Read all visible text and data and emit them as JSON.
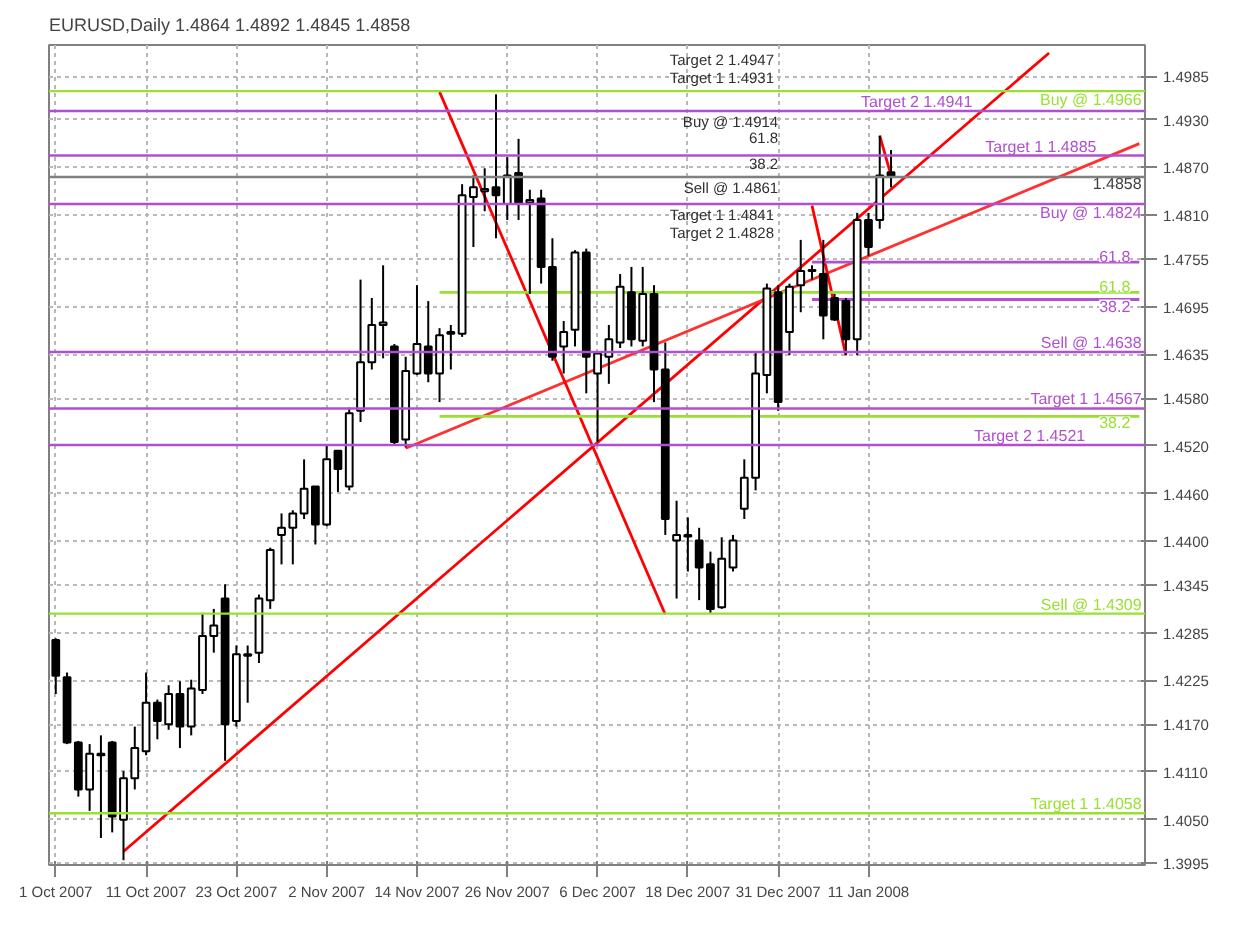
{
  "chart_data": {
    "type": "candlestick",
    "title": "EURUSD,Daily  1.4864 1.4892 1.4845 1.4858",
    "categories": [
      "1 Oct 2007",
      null,
      null,
      null,
      null,
      null,
      null,
      null,
      "11 Oct 2007",
      null,
      null,
      null,
      null,
      null,
      null,
      null,
      "23 Oct 2007",
      null,
      null,
      null,
      null,
      null,
      null,
      null,
      "2 Nov 2007",
      null,
      null,
      null,
      null,
      null,
      null,
      null,
      "14 Nov 2007",
      null,
      null,
      null,
      null,
      null,
      null,
      null,
      "26 Nov 2007",
      null,
      null,
      null,
      null,
      null,
      null,
      null,
      "6 Dec 2007",
      null,
      null,
      null,
      null,
      null,
      null,
      null,
      "18 Dec 2007",
      null,
      null,
      null,
      null,
      null,
      null,
      null,
      "31 Dec 2007",
      null,
      null,
      null,
      null,
      null,
      null,
      null,
      "11 Jan 2008",
      null,
      null,
      null,
      null,
      null,
      null,
      null,
      null,
      null,
      null,
      null,
      null,
      null,
      null,
      null,
      null,
      null,
      null,
      null,
      null,
      null,
      null,
      null,
      null
    ],
    "ohlc": [
      [
        1.4276,
        1.4278,
        1.4208,
        1.4231
      ],
      [
        1.4229,
        1.4235,
        1.4145,
        1.4147
      ],
      [
        1.4147,
        1.4149,
        1.4079,
        1.4088
      ],
      [
        1.4088,
        1.4145,
        1.4061,
        1.4133
      ],
      [
        1.4131,
        1.4156,
        1.4027,
        1.4133
      ],
      [
        1.4147,
        1.4149,
        1.4034,
        1.4054
      ],
      [
        1.405,
        1.4111,
        1.3999,
        1.4102
      ],
      [
        1.4102,
        1.4167,
        1.4088,
        1.414
      ],
      [
        1.4136,
        1.4235,
        1.4131,
        1.4197
      ],
      [
        1.4197,
        1.4201,
        1.4151,
        1.4174
      ],
      [
        1.417,
        1.4219,
        1.4163,
        1.4208
      ],
      [
        1.4208,
        1.4224,
        1.414,
        1.4167
      ],
      [
        1.4167,
        1.4226,
        1.4156,
        1.4215
      ],
      [
        1.4213,
        1.431,
        1.4208,
        1.4281
      ],
      [
        1.4281,
        1.4315,
        1.426,
        1.4294
      ],
      [
        1.4328,
        1.4346,
        1.4124,
        1.417
      ],
      [
        1.4174,
        1.4269,
        1.4167,
        1.4258
      ],
      [
        1.4256,
        1.4269,
        1.4197,
        1.4258
      ],
      [
        1.426,
        1.4333,
        1.4247,
        1.4328
      ],
      [
        1.4326,
        1.4392,
        1.4315,
        1.4389
      ],
      [
        1.4408,
        1.4435,
        1.4371,
        1.4417
      ],
      [
        1.4417,
        1.4439,
        1.4371,
        1.4435
      ],
      [
        1.4435,
        1.4503,
        1.4428,
        1.4466
      ],
      [
        1.4469,
        1.4469,
        1.4396,
        1.4421
      ],
      [
        1.4421,
        1.4521,
        1.4419,
        1.4503
      ],
      [
        1.4514,
        1.4514,
        1.4462,
        1.4491
      ],
      [
        1.4469,
        1.4568,
        1.4464,
        1.4561
      ],
      [
        1.4564,
        1.4729,
        1.455,
        1.4625
      ],
      [
        1.4625,
        1.4706,
        1.4616,
        1.4672
      ],
      [
        1.4672,
        1.4747,
        1.463,
        1.4675
      ],
      [
        1.4645,
        1.4648,
        1.4521,
        1.4525
      ],
      [
        1.4528,
        1.4632,
        1.4518,
        1.4614
      ],
      [
        1.4611,
        1.4722,
        1.4609,
        1.4648
      ],
      [
        1.4645,
        1.4702,
        1.46,
        1.4611
      ],
      [
        1.4611,
        1.4668,
        1.4575,
        1.4659
      ],
      [
        1.4661,
        1.4672,
        1.4616,
        1.4663
      ],
      [
        1.4661,
        1.4849,
        1.4657,
        1.4835
      ],
      [
        1.4833,
        1.486,
        1.477,
        1.4845
      ],
      [
        1.484,
        1.4869,
        1.4815,
        1.4843
      ],
      [
        1.4845,
        1.4962,
        1.4781,
        1.4835
      ],
      [
        1.4824,
        1.4883,
        1.4804,
        1.486
      ],
      [
        1.4863,
        1.4906,
        1.4804,
        1.4824
      ],
      [
        1.4826,
        1.4842,
        1.4711,
        1.4829
      ],
      [
        1.4831,
        1.4842,
        1.4724,
        1.4745
      ],
      [
        1.4745,
        1.4781,
        1.4627,
        1.4632
      ],
      [
        1.4645,
        1.4677,
        1.4611,
        1.4663
      ],
      [
        1.4666,
        1.4766,
        1.4645,
        1.4763
      ],
      [
        1.4763,
        1.4768,
        1.4586,
        1.4632
      ],
      [
        1.4611,
        1.4638,
        1.4525,
        1.4636
      ],
      [
        1.4632,
        1.4672,
        1.4598,
        1.4654
      ],
      [
        1.465,
        1.4736,
        1.4643,
        1.472
      ],
      [
        1.4713,
        1.4745,
        1.4645,
        1.4654
      ],
      [
        1.4652,
        1.4745,
        1.4645,
        1.4711
      ],
      [
        1.4711,
        1.4722,
        1.4575,
        1.4616
      ],
      [
        1.4616,
        1.465,
        1.4408,
        1.4428
      ],
      [
        1.4401,
        1.4451,
        1.4328,
        1.4408
      ],
      [
        1.4408,
        1.443,
        1.4362,
        1.4406
      ],
      [
        1.4401,
        1.4417,
        1.4326,
        1.4367
      ],
      [
        1.4371,
        1.4387,
        1.431,
        1.4315
      ],
      [
        1.4317,
        1.4405,
        1.4315,
        1.4378
      ],
      [
        1.4367,
        1.4408,
        1.4362,
        1.4401
      ],
      [
        1.4441,
        1.4503,
        1.4428,
        1.448
      ],
      [
        1.448,
        1.4638,
        1.4464,
        1.4611
      ],
      [
        1.4609,
        1.4724,
        1.4586,
        1.4718
      ],
      [
        1.4713,
        1.4722,
        1.4564,
        1.4575
      ],
      [
        1.4663,
        1.4724,
        1.4634,
        1.472
      ],
      [
        1.4722,
        1.4779,
        1.4688,
        1.474
      ],
      [
        1.474,
        1.4747,
        1.4729,
        1.4741
      ],
      [
        1.4736,
        1.4779,
        1.4654,
        1.4684
      ],
      [
        1.4706,
        1.4711,
        1.4677,
        1.4679
      ],
      [
        1.4702,
        1.4706,
        1.4634,
        1.4654
      ],
      [
        1.4654,
        1.4813,
        1.4634,
        1.4804
      ],
      [
        1.4804,
        1.4813,
        1.4759,
        1.477
      ],
      [
        1.4804,
        1.491,
        1.4793,
        1.486
      ],
      [
        1.4864,
        1.4892,
        1.4845,
        1.4858
      ],
      null,
      null,
      null,
      null,
      null,
      null,
      null,
      null,
      null,
      null,
      null,
      null,
      null,
      null,
      null,
      null,
      null,
      null,
      null,
      null,
      null,
      null
    ],
    "series": [
      {
        "type": "line",
        "color": "#ff0000",
        "values": [
          null,
          null,
          null,
          null,
          null,
          null,
          1.401,
          null,
          null,
          null,
          null,
          null,
          null,
          null,
          null,
          null,
          null,
          null,
          null,
          null,
          null,
          null,
          null,
          null,
          null,
          null,
          null,
          null,
          null,
          null,
          null,
          null,
          null,
          null,
          null,
          null,
          null,
          null,
          null,
          null,
          null,
          null,
          null,
          null,
          null,
          null,
          null,
          null,
          null,
          null,
          null,
          null,
          null,
          null,
          null,
          null,
          null,
          null,
          null,
          null,
          null,
          null,
          null,
          null,
          null,
          null,
          null,
          null,
          null,
          null,
          null,
          null,
          null,
          null,
          null,
          null,
          null,
          null,
          null,
          null,
          null,
          null,
          null,
          null,
          null,
          null,
          null,
          null,
          1.5014,
          null,
          null,
          null,
          null,
          null,
          null,
          null,
          null
        ]
      },
      {
        "type": "line",
        "color": "#ff3030",
        "values": [
          null,
          null,
          null,
          null,
          null,
          null,
          null,
          null,
          null,
          null,
          null,
          null,
          null,
          null,
          null,
          null,
          null,
          null,
          null,
          null,
          null,
          null,
          null,
          null,
          null,
          null,
          null,
          null,
          null,
          null,
          null,
          1.4517,
          null,
          null,
          null,
          null,
          null,
          null,
          null,
          null,
          null,
          null,
          null,
          null,
          null,
          null,
          null,
          null,
          null,
          null,
          null,
          null,
          null,
          null,
          null,
          null,
          null,
          null,
          null,
          null,
          null,
          null,
          null,
          null,
          null,
          null,
          null,
          null,
          null,
          null,
          null,
          null,
          null,
          null,
          null,
          null,
          null,
          null,
          null,
          null,
          null,
          null,
          null,
          null,
          null,
          null,
          null,
          null,
          null,
          null,
          null,
          null,
          null,
          null,
          null,
          null,
          1.49
        ]
      },
      {
        "type": "line",
        "color": "#ff0000",
        "values": [
          null,
          null,
          null,
          null,
          null,
          null,
          null,
          null,
          null,
          null,
          null,
          null,
          null,
          null,
          null,
          null,
          null,
          null,
          null,
          null,
          null,
          null,
          null,
          null,
          null,
          null,
          null,
          null,
          null,
          null,
          null,
          null,
          null,
          null,
          1.4965,
          null,
          null,
          null,
          null,
          null,
          null,
          null,
          null,
          null,
          null,
          null,
          null,
          null,
          null,
          null,
          null,
          null,
          null,
          null,
          1.4308,
          null,
          null,
          null,
          null,
          null,
          null,
          null,
          null,
          null,
          null,
          null,
          null,
          null,
          null,
          null,
          null,
          null,
          null,
          null,
          null,
          null,
          null,
          null,
          null,
          null,
          null,
          null,
          null,
          null,
          null,
          null,
          null,
          null,
          null,
          null,
          null,
          null,
          null,
          null,
          null,
          null,
          null
        ]
      },
      {
        "type": "line",
        "color": "#ff0000",
        "values": [
          null,
          null,
          null,
          null,
          null,
          null,
          null,
          null,
          null,
          null,
          null,
          null,
          null,
          null,
          null,
          null,
          null,
          null,
          null,
          null,
          null,
          null,
          null,
          null,
          null,
          null,
          null,
          null,
          null,
          null,
          null,
          null,
          null,
          null,
          null,
          null,
          null,
          null,
          null,
          null,
          null,
          null,
          null,
          null,
          null,
          null,
          null,
          null,
          null,
          null,
          null,
          null,
          null,
          null,
          null,
          null,
          null,
          null,
          null,
          null,
          null,
          null,
          null,
          null,
          null,
          null,
          null,
          1.4822,
          null,
          null,
          1.4634,
          null,
          null,
          null,
          null,
          null,
          null,
          null,
          null,
          null,
          null,
          null,
          null,
          null,
          null,
          null,
          null,
          null,
          null,
          null,
          null,
          null,
          null,
          null,
          null,
          null,
          null
        ]
      },
      {
        "type": "line",
        "color": "#ff0000",
        "values": [
          null,
          null,
          null,
          null,
          null,
          null,
          null,
          null,
          null,
          null,
          null,
          null,
          null,
          null,
          null,
          null,
          null,
          null,
          null,
          null,
          null,
          null,
          null,
          null,
          null,
          null,
          null,
          null,
          null,
          null,
          null,
          null,
          null,
          null,
          null,
          null,
          null,
          null,
          null,
          null,
          null,
          null,
          null,
          null,
          null,
          null,
          null,
          null,
          null,
          null,
          null,
          null,
          null,
          null,
          null,
          null,
          null,
          null,
          null,
          null,
          null,
          null,
          null,
          null,
          null,
          null,
          null,
          null,
          null,
          null,
          null,
          null,
          null,
          1.491,
          1.486,
          null,
          null,
          null,
          null,
          null,
          null,
          null,
          null,
          null,
          null,
          null,
          null,
          null,
          null,
          null,
          null,
          null,
          null,
          null,
          null,
          null,
          null
        ]
      },
      {
        "type": "line",
        "name": "61.8",
        "color": "#b050d0",
        "values": [
          null,
          null,
          null,
          null,
          null,
          null,
          null,
          null,
          null,
          null,
          null,
          null,
          null,
          null,
          null,
          null,
          null,
          null,
          null,
          null,
          null,
          null,
          null,
          null,
          null,
          null,
          null,
          null,
          null,
          null,
          null,
          null,
          null,
          null,
          null,
          null,
          null,
          null,
          null,
          null,
          null,
          null,
          null,
          null,
          null,
          null,
          null,
          null,
          null,
          null,
          null,
          null,
          null,
          null,
          null,
          null,
          null,
          null,
          null,
          null,
          null,
          null,
          null,
          null,
          null,
          null,
          null,
          1.4751,
          null,
          null,
          null,
          null,
          null,
          null,
          null,
          null,
          null,
          null,
          null,
          null,
          null,
          null,
          null,
          null,
          null,
          null,
          null,
          null,
          null,
          null,
          null,
          null,
          null,
          null,
          null,
          null,
          1.4751
        ]
      },
      {
        "type": "line",
        "name": "61.8",
        "color": "#99e033",
        "values": [
          null,
          null,
          null,
          null,
          null,
          null,
          null,
          null,
          null,
          null,
          null,
          null,
          null,
          null,
          null,
          null,
          null,
          null,
          null,
          null,
          null,
          null,
          null,
          null,
          null,
          null,
          null,
          null,
          null,
          null,
          null,
          null,
          null,
          null,
          1.4713,
          null,
          null,
          null,
          null,
          null,
          null,
          null,
          null,
          null,
          null,
          null,
          null,
          null,
          null,
          null,
          null,
          null,
          null,
          null,
          null,
          null,
          null,
          null,
          null,
          null,
          null,
          null,
          null,
          null,
          null,
          null,
          null,
          null,
          null,
          null,
          null,
          null,
          null,
          null,
          null,
          null,
          null,
          null,
          null,
          null,
          null,
          null,
          null,
          null,
          null,
          null,
          null,
          null,
          null,
          null,
          null,
          null,
          null,
          null,
          null,
          null,
          1.4713
        ]
      },
      {
        "type": "line",
        "name": "38.2",
        "color": "#b050d0",
        "values": [
          null,
          null,
          null,
          null,
          null,
          null,
          null,
          null,
          null,
          null,
          null,
          null,
          null,
          null,
          null,
          null,
          null,
          null,
          null,
          null,
          null,
          null,
          null,
          null,
          null,
          null,
          null,
          null,
          null,
          null,
          null,
          null,
          null,
          null,
          null,
          null,
          null,
          null,
          null,
          null,
          null,
          null,
          null,
          null,
          null,
          null,
          null,
          null,
          null,
          null,
          null,
          null,
          null,
          null,
          null,
          null,
          null,
          null,
          null,
          null,
          null,
          null,
          null,
          null,
          null,
          null,
          null,
          1.4704,
          null,
          null,
          null,
          null,
          null,
          null,
          null,
          null,
          null,
          null,
          null,
          null,
          null,
          null,
          null,
          null,
          null,
          null,
          null,
          null,
          null,
          null,
          null,
          null,
          null,
          null,
          null,
          null,
          1.4704
        ]
      },
      {
        "type": "line",
        "name": "38.2",
        "color": "#99e033",
        "values": [
          null,
          null,
          null,
          null,
          null,
          null,
          null,
          null,
          null,
          null,
          null,
          null,
          null,
          null,
          null,
          null,
          null,
          null,
          null,
          null,
          null,
          null,
          null,
          null,
          null,
          null,
          null,
          null,
          null,
          null,
          null,
          null,
          null,
          null,
          1.4557,
          null,
          null,
          null,
          null,
          null,
          null,
          null,
          null,
          null,
          null,
          null,
          null,
          null,
          null,
          null,
          null,
          null,
          null,
          null,
          null,
          null,
          null,
          null,
          null,
          null,
          null,
          null,
          null,
          null,
          null,
          null,
          null,
          null,
          null,
          null,
          null,
          null,
          null,
          null,
          null,
          null,
          null,
          null,
          null,
          null,
          null,
          null,
          null,
          null,
          null,
          null,
          null,
          null,
          null,
          null,
          null,
          null,
          null,
          null,
          null,
          null,
          1.4557
        ]
      }
    ],
    "ylim": [
      1.3993,
      1.5024
    ],
    "yticks": [
      {
        "value": 1.3995,
        "label": "1.3995"
      },
      {
        "value": 1.405,
        "label": "1.4050"
      },
      {
        "value": 1.411,
        "label": "1.4110"
      },
      {
        "value": 1.417,
        "label": "1.4170"
      },
      {
        "value": 1.4225,
        "label": "1.4225"
      },
      {
        "value": 1.4285,
        "label": "1.4285"
      },
      {
        "value": 1.4345,
        "label": "1.4345"
      },
      {
        "value": 1.44,
        "label": "1.4400"
      },
      {
        "value": 1.446,
        "label": "1.4460"
      },
      {
        "value": 1.452,
        "label": "1.4520"
      },
      {
        "value": 1.458,
        "label": "1.4580"
      },
      {
        "value": 1.4635,
        "label": "1.4635"
      },
      {
        "value": 1.4695,
        "label": "1.4695"
      },
      {
        "value": 1.4755,
        "label": "1.4755"
      },
      {
        "value": 1.481,
        "label": "1.4810"
      },
      {
        "value": 1.487,
        "label": "1.4870"
      },
      {
        "value": 1.493,
        "label": "1.4930"
      },
      {
        "value": 1.4985,
        "label": "1.4985"
      }
    ],
    "grid": true,
    "ref_lines": [
      {
        "axis": "y",
        "value": 1.4966,
        "label": "Buy @ 1.4966",
        "color": "#99e033"
      },
      {
        "axis": "y",
        "value": 1.4941,
        "label": "Target 2 1.4941",
        "color": "#b050d0"
      },
      {
        "axis": "y",
        "value": 1.4885,
        "label": "Target 1 1.4885",
        "color": "#b050d0"
      },
      {
        "axis": "y",
        "value": 1.4858,
        "label": "1.4858",
        "color": "#808080"
      },
      {
        "axis": "y",
        "value": 1.4824,
        "label": "Buy @ 1.4824",
        "color": "#b050d0"
      },
      {
        "axis": "y",
        "value": 1.4638,
        "label": "Sell @ 1.4638",
        "color": "#b050d0"
      },
      {
        "axis": "y",
        "value": 1.4567,
        "label": "Target 1 1.4567",
        "color": "#b050d0"
      },
      {
        "axis": "y",
        "value": 1.4521,
        "label": "Target 2 1.4521",
        "color": "#b050d0"
      },
      {
        "axis": "y",
        "value": 1.4309,
        "label": "Sell @ 1.4309",
        "color": "#99e033"
      },
      {
        "axis": "y",
        "value": 1.4058,
        "label": "Target 1 1.4058",
        "color": "#99e033"
      }
    ],
    "annotations": [
      "Target 2  1.4947",
      "Target 1  1.4931",
      "Buy @ 1.4914",
      "61.8",
      "38.2",
      "Sell @ 1.4861",
      "Target 1  1.4841",
      "Target 2  1.4828"
    ]
  }
}
